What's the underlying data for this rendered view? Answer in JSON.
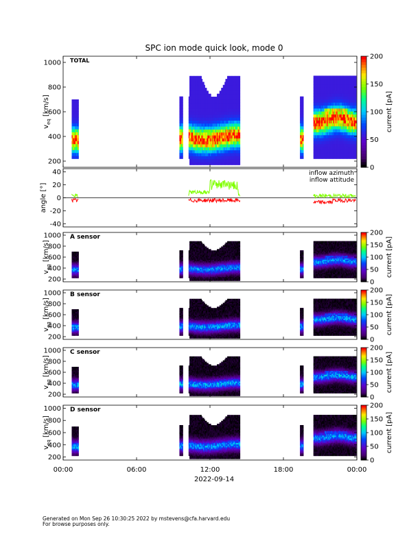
{
  "chart_data": {
    "type": "heatmap",
    "title": "SPC ion mode quick look, mode 0",
    "time_axis": {
      "range_hours": [
        0,
        24
      ],
      "ticks": [
        0,
        6,
        12,
        18,
        24
      ],
      "tick_labels": [
        "00:00",
        "06:00",
        "12:00",
        "18:00",
        "00:00"
      ],
      "date_label": "2022-09-14"
    },
    "data_intervals_hours": [
      [
        0.7,
        1.25
      ],
      [
        9.5,
        9.78
      ],
      [
        10.25,
        14.45
      ],
      [
        19.35,
        19.6
      ],
      [
        20.45,
        23.9
      ]
    ],
    "panels": [
      {
        "name": "TOTAL",
        "kind": "spectrogram",
        "ylabel_main": "v",
        "ylabel_sub": "eq",
        "ylabel_unit": "[km/s]",
        "ylim": [
          150,
          1050
        ],
        "yticks": [
          200,
          400,
          600,
          800,
          1000
        ],
        "colorbar": {
          "label": "current [pA]",
          "ticks": [
            0,
            50,
            100,
            150,
            200
          ],
          "range": [
            0,
            200
          ]
        },
        "scale": 1.0
      },
      {
        "name": "angle",
        "kind": "line",
        "ylabel": "angle [°]",
        "ylim": [
          -45,
          45
        ],
        "yticks": [
          -40,
          -20,
          0,
          20,
          40
        ],
        "series": [
          {
            "name": "inflow azimuth",
            "color": "#ff0000"
          },
          {
            "name": "inflow attitude",
            "color": "#80ff00"
          }
        ]
      },
      {
        "name": "A sensor",
        "kind": "spectrogram",
        "ylabel_main": "v",
        "ylabel_sub": "eq",
        "ylabel_unit": "[km/s]",
        "ylim": [
          150,
          1050
        ],
        "yticks": [
          200,
          400,
          600,
          800,
          1000
        ],
        "colorbar": {
          "label": "current [pA]",
          "ticks": [
            0,
            50,
            100,
            150,
            200
          ],
          "range": [
            0,
            200
          ]
        },
        "scale": 0.32
      },
      {
        "name": "B sensor",
        "kind": "spectrogram",
        "ylabel_main": "v",
        "ylabel_sub": "eq",
        "ylabel_unit": "[km/s]",
        "ylim": [
          150,
          1050
        ],
        "yticks": [
          200,
          400,
          600,
          800,
          1000
        ],
        "colorbar": {
          "label": "current [pA]",
          "ticks": [
            0,
            50,
            100,
            150,
            200
          ],
          "range": [
            0,
            200
          ]
        },
        "scale": 0.34
      },
      {
        "name": "C sensor",
        "kind": "spectrogram",
        "ylabel_main": "v",
        "ylabel_sub": "eq",
        "ylabel_unit": "[km/s]",
        "ylim": [
          150,
          1050
        ],
        "yticks": [
          200,
          400,
          600,
          800,
          1000
        ],
        "colorbar": {
          "label": "current [pA]",
          "ticks": [
            0,
            50,
            100,
            150,
            200
          ],
          "range": [
            0,
            200
          ]
        },
        "scale": 0.34
      },
      {
        "name": "D sensor",
        "kind": "spectrogram",
        "ylabel_main": "v",
        "ylabel_sub": "eq",
        "ylabel_unit": "[km/s]",
        "ylim": [
          150,
          1050
        ],
        "yticks": [
          200,
          400,
          600,
          800,
          1000
        ],
        "colorbar": {
          "label": "current [pA]",
          "ticks": [
            0,
            50,
            100,
            150,
            200
          ],
          "range": [
            0,
            200
          ]
        },
        "scale": 0.33
      }
    ]
  },
  "footer": {
    "line1": "Generated on Mon Sep 26 10:30:25 2022 by mstevens@cfa.harvard.edu",
    "line2": "For browse purposes only."
  }
}
